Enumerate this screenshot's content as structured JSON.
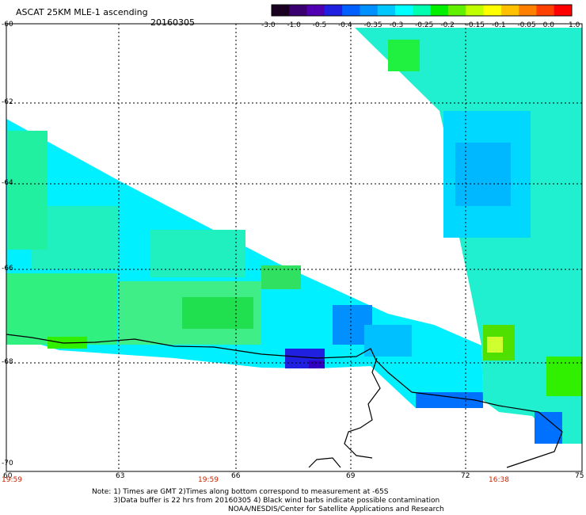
{
  "header": {
    "title": "ASCAT 25KM MLE-1 ascending",
    "date": "20160305"
  },
  "colorbar": {
    "labels": [
      "-3.0",
      "-1.0",
      "-0.5",
      "-0.4",
      "-0.35",
      "-0.3",
      "-0.25",
      "-0.2",
      "-0.15",
      "-0.1",
      "-0.05",
      "0.0",
      "1.0"
    ],
    "colors": [
      "#1a0020",
      "#3a0070",
      "#5000b0",
      "#2020e0",
      "#0060ff",
      "#0090ff",
      "#00c8ff",
      "#00ffff",
      "#00ffb0",
      "#00f000",
      "#60f000",
      "#c0ff00",
      "#ffff00",
      "#ffc000",
      "#ff8000",
      "#ff4000",
      "#ff0000"
    ]
  },
  "axes": {
    "lat_labels": [
      "-60",
      "-62",
      "-64",
      "-66",
      "-68",
      "-70"
    ],
    "lon_labels": [
      "60",
      "63",
      "66",
      "69",
      "72",
      "75"
    ],
    "time_labels": [
      "19:59",
      "19:59",
      "16:38"
    ]
  },
  "notes": {
    "line1": "Note: 1) Times are GMT 2)Times along bottom correspond to measurement at -65S",
    "line2": "3)Data buffer is 22 hrs from 20160305 4) Black wind barbs indicate possible contamination",
    "line3": "NOAA/NESDIS/Center for Satellite Applications and Research"
  },
  "colors": {
    "land": "#ffffff",
    "coast": "#000000",
    "grid": "#000000",
    "time": "#cc2200"
  }
}
